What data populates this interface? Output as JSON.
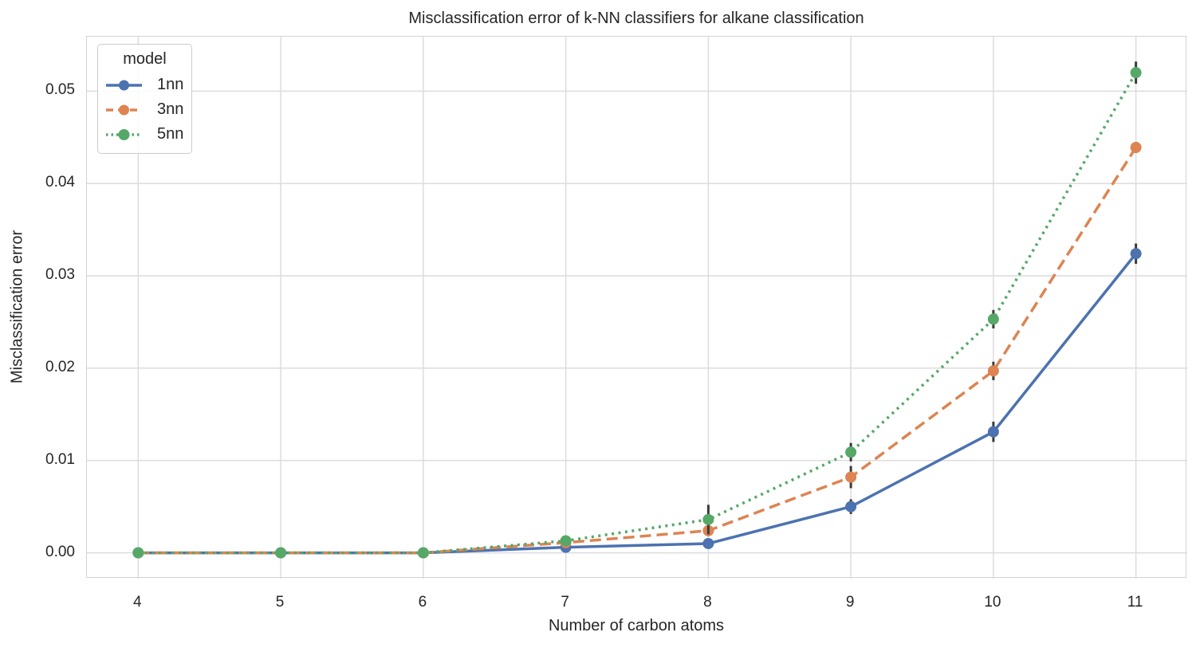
{
  "chart": {
    "title": "Misclassification error of k-NN classifiers for alkane classification",
    "xlabel": "Number of carbon atoms",
    "ylabel": "Misclassification error",
    "legend_title": "model"
  },
  "chart_data": {
    "type": "line",
    "title": "Misclassification error of k-NN classifiers for alkane classification",
    "xlabel": "Number of carbon atoms",
    "ylabel": "Misclassification error",
    "x": [
      4,
      5,
      6,
      7,
      8,
      9,
      10,
      11
    ],
    "series": [
      {
        "name": "1nn",
        "color": "#4c72b0",
        "dash": "solid",
        "values": [
          0.0,
          0.0,
          0.0,
          0.0006,
          0.001,
          0.005,
          0.0131,
          0.0324
        ],
        "errors": [
          0.0,
          0.0,
          0.0,
          0.0003,
          0.0004,
          0.0008,
          0.0011,
          0.0011
        ]
      },
      {
        "name": "3nn",
        "color": "#dd8452",
        "dash": "dashed",
        "values": [
          0.0,
          0.0,
          0.0,
          0.0011,
          0.0024,
          0.0082,
          0.0197,
          0.0439
        ],
        "errors": [
          0.0,
          0.0,
          0.0,
          0.0004,
          0.0006,
          0.0012,
          0.001,
          0.0006
        ]
      },
      {
        "name": "5nn",
        "color": "#55a868",
        "dash": "dotted",
        "values": [
          0.0,
          0.0,
          0.0,
          0.0013,
          0.0036,
          0.0109,
          0.0253,
          0.052
        ],
        "errors": [
          0.0,
          0.0,
          0.0,
          0.0005,
          0.0016,
          0.001,
          0.001,
          0.0012
        ]
      }
    ],
    "xticks": [
      4,
      5,
      6,
      7,
      8,
      9,
      10,
      11
    ],
    "yticks": [
      "0.00",
      "0.01",
      "0.02",
      "0.03",
      "0.04",
      "0.05"
    ],
    "ytick_values": [
      0.0,
      0.01,
      0.02,
      0.03,
      0.04,
      0.05
    ],
    "xlim": [
      3.64,
      11.36
    ],
    "ylim": [
      -0.0028,
      0.0559
    ],
    "grid": true,
    "legend_position": "upper left",
    "colors": {
      "grid": "#dcdcdc",
      "spine": "#d3d3d3",
      "text": "#262626",
      "errorbar": "#3a3a3a",
      "background": "#ffffff"
    }
  }
}
